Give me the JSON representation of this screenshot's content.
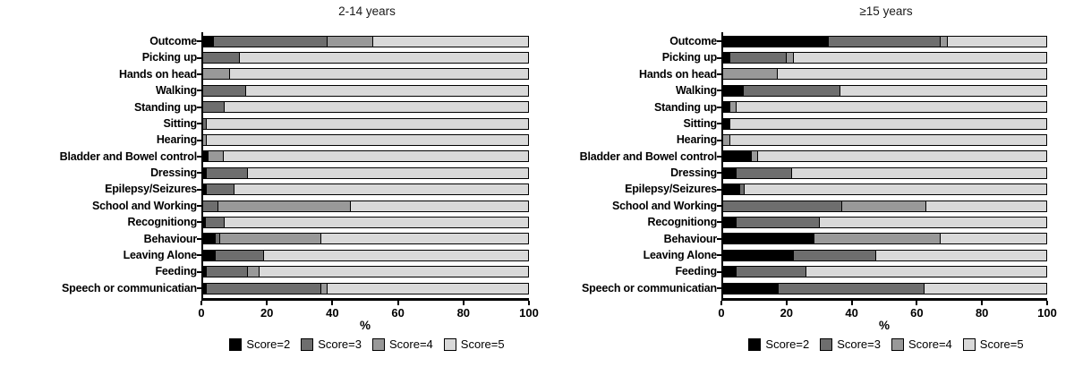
{
  "figure": {
    "legend": {
      "items": [
        {
          "label": "Score=2",
          "color": "#000000"
        },
        {
          "label": "Score=3",
          "color": "#6e6e6e"
        },
        {
          "label": "Score=4",
          "color": "#999999"
        },
        {
          "label": "Score=5",
          "color": "#d9d9d9"
        }
      ]
    },
    "colors": {
      "axis": "#000000",
      "background": "#ffffff",
      "bar_border": "#000000"
    }
  },
  "chart_data": [
    {
      "type": "bar",
      "stacked": true,
      "orientation": "horizontal",
      "title": "2-14 years",
      "xlabel": "%",
      "xlim": [
        0,
        100
      ],
      "xticks": [
        "0",
        "20",
        "40",
        "60",
        "80",
        "100"
      ],
      "grid": false,
      "legend_position": "bottom",
      "categories": [
        "Outcome",
        "Picking up",
        "Hands on head",
        "Walking",
        "Standing up",
        "Sitting",
        "Hearing",
        "Bladder and Bowel control",
        "Dressing",
        "Epilepsy/Seizures",
        "School and Working",
        "Recognitiong",
        "Behaviour",
        "Leaving Alone",
        "Feeding",
        "Speech or communicatian"
      ],
      "series": [
        {
          "name": "Score=2",
          "color": "#000000",
          "values": [
            3.5,
            0,
            0,
            0,
            0,
            0,
            0,
            2,
            1.5,
            1.5,
            0,
            1,
            4,
            4,
            1.5,
            1.5
          ]
        },
        {
          "name": "Score=3",
          "color": "#6e6e6e",
          "values": [
            35,
            11.5,
            0,
            13.5,
            7,
            1.5,
            0,
            0,
            12.5,
            8.5,
            5,
            6,
            1.5,
            15,
            12.5,
            35
          ]
        },
        {
          "name": "Score=4",
          "color": "#999999",
          "values": [
            14,
            0,
            8.5,
            0,
            0,
            0,
            1.5,
            4.5,
            0,
            0,
            40.5,
            0,
            31,
            0,
            3.5,
            2
          ]
        },
        {
          "name": "Score=5",
          "color": "#d9d9d9",
          "values": [
            47.5,
            88.5,
            91.5,
            86.5,
            93,
            98.5,
            98.5,
            93.5,
            86,
            90,
            54.5,
            93,
            63.5,
            81,
            82.5,
            61.5
          ]
        }
      ]
    },
    {
      "type": "bar",
      "stacked": true,
      "orientation": "horizontal",
      "title": "≥15 years",
      "xlabel": "%",
      "xlim": [
        0,
        100
      ],
      "xticks": [
        "0",
        "20",
        "40",
        "60",
        "80",
        "100"
      ],
      "grid": false,
      "legend_position": "bottom",
      "categories": [
        "Outcome",
        "Picking up",
        "Hands on head",
        "Walking",
        "Standing up",
        "Sitting",
        "Hearing",
        "Bladder and Bowel control",
        "Dressing",
        "Epilepsy/Seizures",
        "School and Working",
        "Recognitiong",
        "Behaviour",
        "Leaving Alone",
        "Feeding",
        "Speech or communicatian"
      ],
      "series": [
        {
          "name": "Score=2",
          "color": "#000000",
          "values": [
            33,
            2.5,
            0,
            6.5,
            2.5,
            2.5,
            0,
            9,
            4.5,
            5.5,
            0,
            4.5,
            28.5,
            22,
            4.5,
            17.5
          ]
        },
        {
          "name": "Score=3",
          "color": "#6e6e6e",
          "values": [
            34.5,
            17.5,
            0,
            30,
            0,
            0,
            0,
            0,
            17,
            1.5,
            37,
            25.5,
            0,
            25.5,
            21.5,
            45
          ]
        },
        {
          "name": "Score=4",
          "color": "#999999",
          "values": [
            2,
            2,
            17,
            0,
            2,
            0,
            2.5,
            2,
            0,
            0,
            26,
            0,
            39,
            0,
            0,
            0
          ]
        },
        {
          "name": "Score=5",
          "color": "#d9d9d9",
          "values": [
            30.5,
            78,
            83,
            63.5,
            95.5,
            97.5,
            97.5,
            89,
            78.5,
            93,
            37,
            70,
            32.5,
            52.5,
            74,
            37.5
          ]
        }
      ]
    }
  ]
}
